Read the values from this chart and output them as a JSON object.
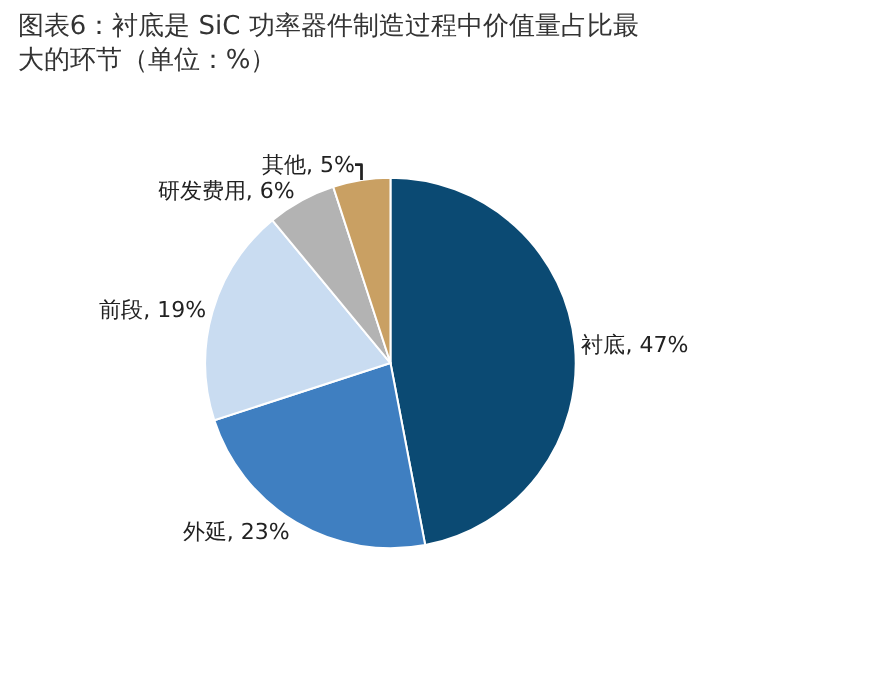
{
  "chart_data": {
    "type": "pie",
    "title": "图表6：衬底是 SiC 功率器件制造过程中价值量占比最大的环节（单位：%）",
    "categories": [
      "衬底",
      "外延",
      "前段",
      "研发费用",
      "其他"
    ],
    "values": [
      47,
      23,
      19,
      6,
      5
    ],
    "value_labels": [
      "47%",
      "23%",
      "19%",
      "6%",
      "5%"
    ],
    "colors": [
      "#0b4a73",
      "#3f7fc1",
      "#c9dcf1",
      "#b3b3b3",
      "#c9a063"
    ],
    "legend": false
  }
}
